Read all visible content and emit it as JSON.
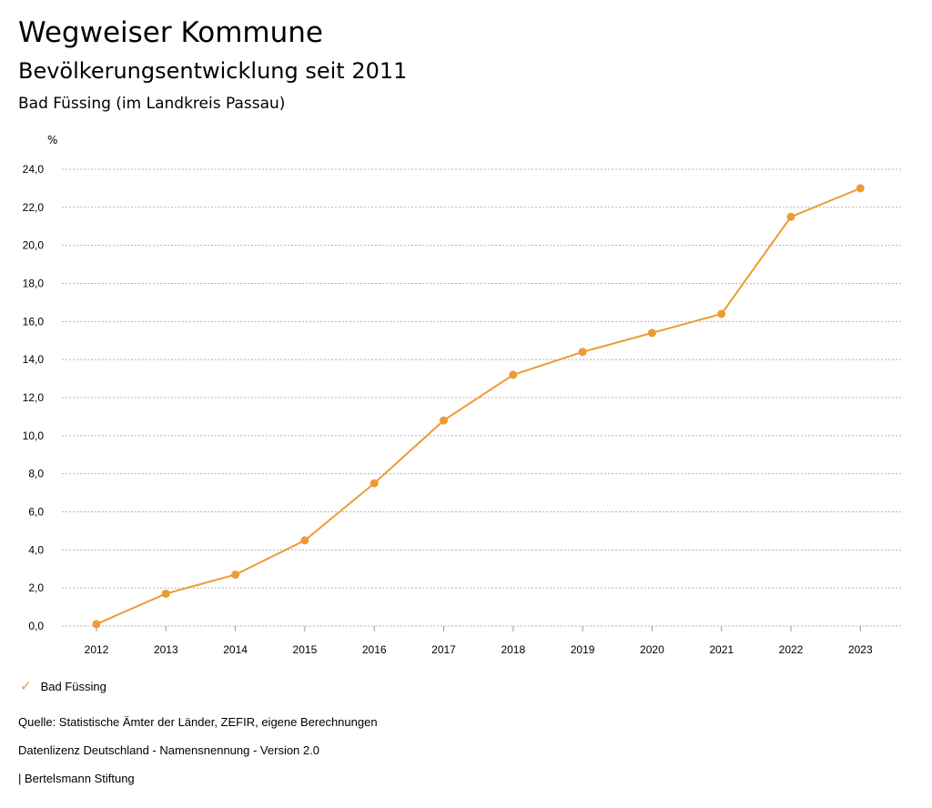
{
  "header": {
    "title": "Wegweiser Kommune",
    "subtitle": "Bevölkerungsentwicklung seit 2011",
    "region": "Bad Füssing (im Landkreis Passau)"
  },
  "chart_data": {
    "type": "line",
    "unit_label": "%",
    "x": [
      "2012",
      "2013",
      "2014",
      "2015",
      "2016",
      "2017",
      "2018",
      "2019",
      "2020",
      "2021",
      "2022",
      "2023"
    ],
    "series": [
      {
        "name": "Bad Füssing",
        "values": [
          0.1,
          1.7,
          2.7,
          4.5,
          7.5,
          10.8,
          13.2,
          14.4,
          15.4,
          16.4,
          21.5,
          23.0
        ],
        "color": "#ED9B33"
      }
    ],
    "ylim": [
      0,
      24
    ],
    "yticks": [
      "0,0",
      "2,0",
      "4,0",
      "6,0",
      "8,0",
      "10,0",
      "12,0",
      "14,0",
      "16,0",
      "18,0",
      "20,0",
      "22,0",
      "24,0"
    ],
    "grid": true,
    "legend_position": "bottom-left"
  },
  "legend": {
    "label": "Bad Füssing",
    "icon": "check-icon"
  },
  "footer": {
    "source": "Quelle: Statistische Ämter der Länder, ZEFIR, eigene Berechnungen",
    "license": "Datenlizenz Deutschland - Namensnennung - Version 2.0",
    "publisher": "| Bertelsmann Stiftung"
  }
}
